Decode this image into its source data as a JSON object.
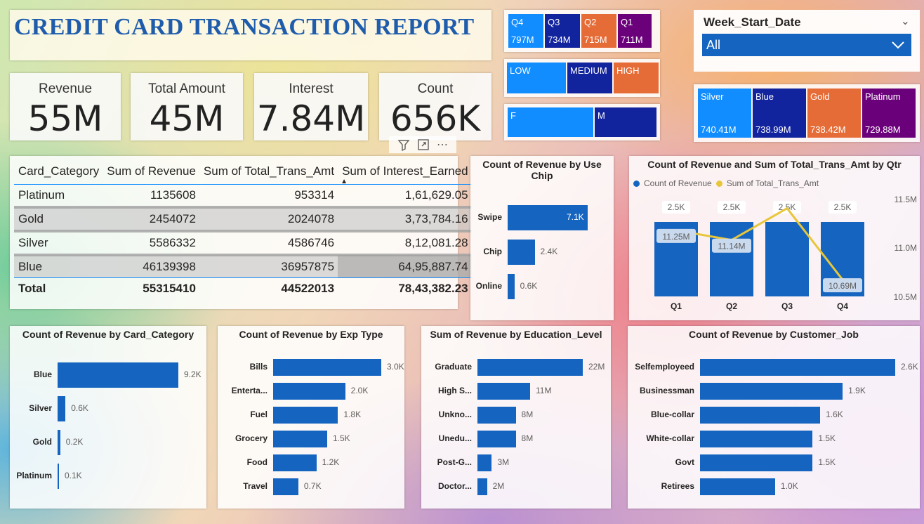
{
  "title": "CREDIT CARD TRANSACTION REPORT",
  "kpis": [
    {
      "label": "Revenue",
      "value": "55M"
    },
    {
      "label": "Total Amount",
      "value": "45M"
    },
    {
      "label": "Interest",
      "value": "7.84M"
    },
    {
      "label": "Count",
      "value": "656K"
    }
  ],
  "quarter_slicer": [
    {
      "label": "Q4",
      "value": "797M"
    },
    {
      "label": "Q3",
      "value": "734M"
    },
    {
      "label": "Q2",
      "value": "715M"
    },
    {
      "label": "Q1",
      "value": "711M"
    }
  ],
  "income_slicer": [
    "LOW",
    "MEDIUM",
    "HIGH"
  ],
  "gender_slicer": [
    "F",
    "M"
  ],
  "card_slicer": [
    {
      "label": "Silver",
      "value": "740.41M"
    },
    {
      "label": "Blue",
      "value": "738.99M"
    },
    {
      "label": "Gold",
      "value": "738.42M"
    },
    {
      "label": "Platinum",
      "value": "729.88M"
    }
  ],
  "week_filter": {
    "label": "Week_Start_Date",
    "value": "All"
  },
  "colors": {
    "blue": "#118dff",
    "navy": "#12239e",
    "orange": "#e66c37",
    "purple": "#6b007b",
    "bar": "#1565c0",
    "line": "#e8c63a"
  },
  "matrix": {
    "headers": [
      "Card_Category",
      "Sum of Revenue",
      "Sum of Total_Trans_Amt",
      "Sum of Interest_Earned"
    ],
    "rows": [
      [
        "Platinum",
        "1135608",
        "953314",
        "1,61,629.05"
      ],
      [
        "Gold",
        "2454072",
        "2024078",
        "3,73,784.16"
      ],
      [
        "Silver",
        "5586332",
        "4586746",
        "8,12,081.28"
      ],
      [
        "Blue",
        "46139398",
        "36957875",
        "64,95,887.74"
      ]
    ],
    "total": [
      "Total",
      "55315410",
      "44522013",
      "78,43,382.23"
    ]
  },
  "chart_data": [
    {
      "type": "bar",
      "title": "Count of Revenue by Use Chip",
      "categories": [
        "Swipe",
        "Chip",
        "Online"
      ],
      "values": [
        7.1,
        2.4,
        0.6
      ],
      "labels": [
        "7.1K",
        "2.4K",
        "0.6K"
      ],
      "orientation": "horizontal"
    },
    {
      "type": "bar",
      "title": "Count of Revenue and Sum of Total_Trans_Amt by Qtr",
      "categories": [
        "Q1",
        "Q2",
        "Q3",
        "Q4"
      ],
      "series": [
        {
          "name": "Count of Revenue",
          "values": [
            2.5,
            2.5,
            2.5,
            2.5
          ],
          "labels": [
            "2.5K",
            "2.5K",
            "2.5K",
            "2.5K"
          ]
        },
        {
          "name": "Sum of Total_Trans_Amt",
          "values": [
            11.25,
            11.14,
            11.5,
            10.69
          ],
          "labels": [
            "11.25M",
            "11.14M",
            "",
            "10.69M"
          ]
        }
      ],
      "y2_ticks": [
        "11.5M",
        "11.0M",
        "10.5M"
      ],
      "legend": "top-left"
    },
    {
      "type": "bar",
      "title": "Count of Revenue by Card_Category",
      "categories": [
        "Blue",
        "Silver",
        "Gold",
        "Platinum"
      ],
      "values": [
        9.2,
        0.6,
        0.2,
        0.1
      ],
      "labels": [
        "9.2K",
        "0.6K",
        "0.2K",
        "0.1K"
      ],
      "orientation": "horizontal"
    },
    {
      "type": "bar",
      "title": "Count of Revenue by Exp Type",
      "categories": [
        "Bills",
        "Enterta...",
        "Fuel",
        "Grocery",
        "Food",
        "Travel"
      ],
      "values": [
        3.0,
        2.0,
        1.8,
        1.5,
        1.2,
        0.7
      ],
      "labels": [
        "3.0K",
        "2.0K",
        "1.8K",
        "1.5K",
        "1.2K",
        "0.7K"
      ],
      "orientation": "horizontal"
    },
    {
      "type": "bar",
      "title": "Sum of Revenue by Education_Level",
      "categories": [
        "Graduate",
        "High S...",
        "Unkno...",
        "Unedu...",
        "Post-G...",
        "Doctor..."
      ],
      "values": [
        22,
        11,
        8,
        8,
        3,
        2
      ],
      "labels": [
        "22M",
        "11M",
        "8M",
        "8M",
        "3M",
        "2M"
      ],
      "orientation": "horizontal"
    },
    {
      "type": "bar",
      "title": "Count of Revenue by Customer_Job",
      "categories": [
        "Selfemployeed",
        "Businessman",
        "Blue-collar",
        "White-collar",
        "Govt",
        "Retirees"
      ],
      "values": [
        2.6,
        1.9,
        1.6,
        1.5,
        1.5,
        1.0
      ],
      "labels": [
        "2.6K",
        "1.9K",
        "1.6K",
        "1.5K",
        "1.5K",
        "1.0K"
      ],
      "orientation": "horizontal"
    }
  ]
}
